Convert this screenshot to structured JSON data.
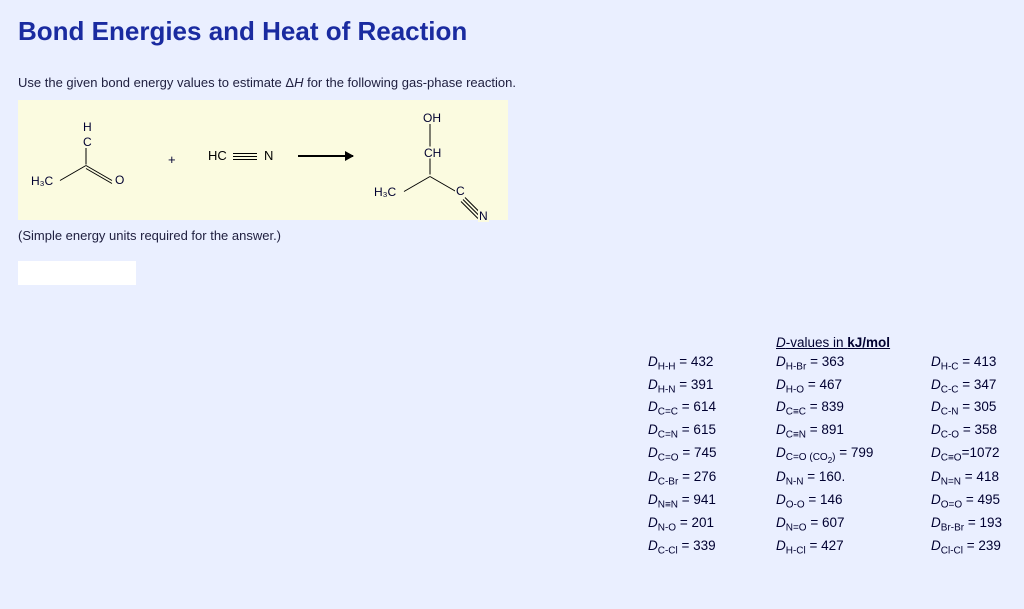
{
  "title": "Bond Energies and Heat of Reaction",
  "instruction": "Use the given bond energy values to estimate ΔH for the following gas-phase reaction.",
  "note": "(Simple energy units required for the answer.)",
  "reaction": {
    "plus": "+",
    "reactant2_line1": "HC",
    "reactant2_line2": "N",
    "h3c_a": "H₃C",
    "h3c_b": "H₃C",
    "O_a": "O",
    "H_a": "H",
    "C_a": "C",
    "OH": "OH",
    "CH": "CH",
    "C_b": "C",
    "N_b": "N"
  },
  "dvalues": {
    "header_text": "-values in ",
    "header_unit": "kJ/mol",
    "header_D": "D",
    "rows": [
      [
        "H-H",
        "432",
        "H-Br",
        "363",
        "H-C",
        "413"
      ],
      [
        "H-N",
        "391",
        "H-O",
        "467",
        "C-C",
        "347"
      ],
      [
        "C=C",
        "614",
        "C≡C",
        "839",
        "C-N",
        "305"
      ],
      [
        "C=N",
        "615",
        "C≡N",
        "891",
        "C-O",
        "358"
      ],
      [
        "C=O",
        "745",
        "C=O (CO₂)",
        "799",
        "C≡O",
        "1072"
      ],
      [
        "C-Br",
        "276",
        "N-N",
        "160.",
        "N=N",
        "418"
      ],
      [
        "N≡N",
        "941",
        "O-O",
        "146",
        "O=O",
        "495"
      ],
      [
        "N-O",
        "201",
        "N=O",
        "607",
        "Br-Br",
        "193"
      ],
      [
        "C-Cl",
        "339",
        "H-Cl",
        "427",
        "Cl-Cl",
        "239"
      ]
    ]
  },
  "colors": {
    "page_bg": "#eaefff",
    "heading": "#1a2ba0",
    "panel_bg": "#fbfbe0"
  }
}
